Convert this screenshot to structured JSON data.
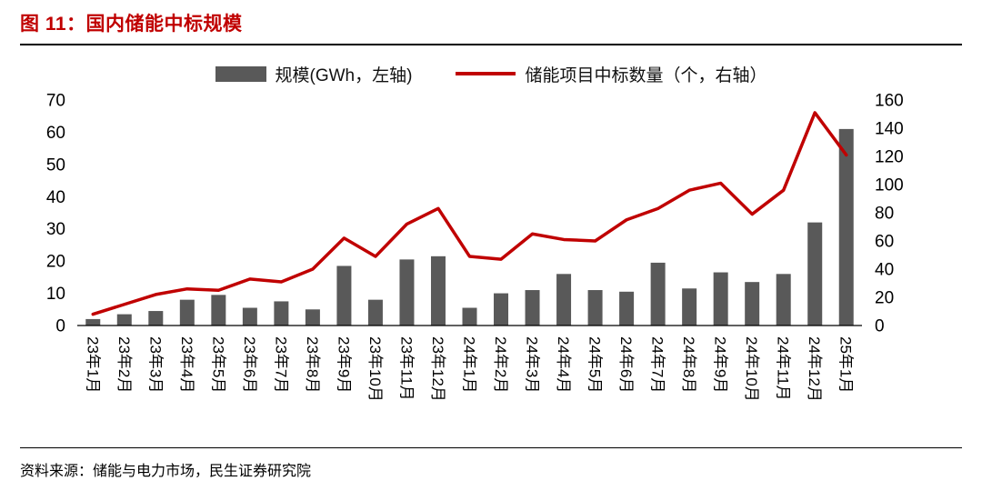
{
  "header": {
    "title": "图 11：国内储能中标规模"
  },
  "legend": {
    "bar_label": "规模(GWh，左轴)",
    "line_label": "储能项目中标数量（个，右轴）"
  },
  "footer": {
    "source": "资料来源：储能与电力市场，民生证券研究院"
  },
  "colors": {
    "bar": "#595959",
    "line": "#C00000",
    "title": "#C00000",
    "axis_text": "#000000"
  },
  "chart_data": {
    "type": "bar+line",
    "title": "国内储能中标规模",
    "legend_position": "top",
    "grid": false,
    "categories": [
      "23年1月",
      "23年2月",
      "23年3月",
      "23年4月",
      "23年5月",
      "23年6月",
      "23年7月",
      "23年8月",
      "23年9月",
      "23年10月",
      "23年11月",
      "23年12月",
      "24年1月",
      "24年2月",
      "24年3月",
      "24年4月",
      "24年5月",
      "24年6月",
      "24年7月",
      "24年8月",
      "24年9月",
      "24年10月",
      "24年11月",
      "24年12月",
      "25年1月"
    ],
    "series": [
      {
        "name": "规模(GWh，左轴)",
        "type": "bar",
        "axis": "left",
        "unit": "GWh",
        "values": [
          2,
          3.5,
          4.5,
          8,
          9.5,
          5.5,
          7.5,
          5,
          18.5,
          8,
          20.5,
          21.5,
          5.5,
          10,
          11,
          16,
          11,
          10.5,
          19.5,
          11.5,
          16.5,
          13.5,
          16,
          32,
          61
        ]
      },
      {
        "name": "储能项目中标数量（个，右轴）",
        "type": "line",
        "axis": "right",
        "unit": "个",
        "values": [
          8,
          15,
          22,
          26,
          25,
          33,
          31,
          40,
          62,
          49,
          72,
          83,
          49,
          47,
          65,
          61,
          60,
          75,
          83,
          96,
          101,
          79,
          96,
          151,
          121
        ]
      }
    ],
    "left_axis": {
      "min": 0,
      "max": 70,
      "step": 10
    },
    "right_axis": {
      "min": 0,
      "max": 160,
      "step": 20
    }
  }
}
